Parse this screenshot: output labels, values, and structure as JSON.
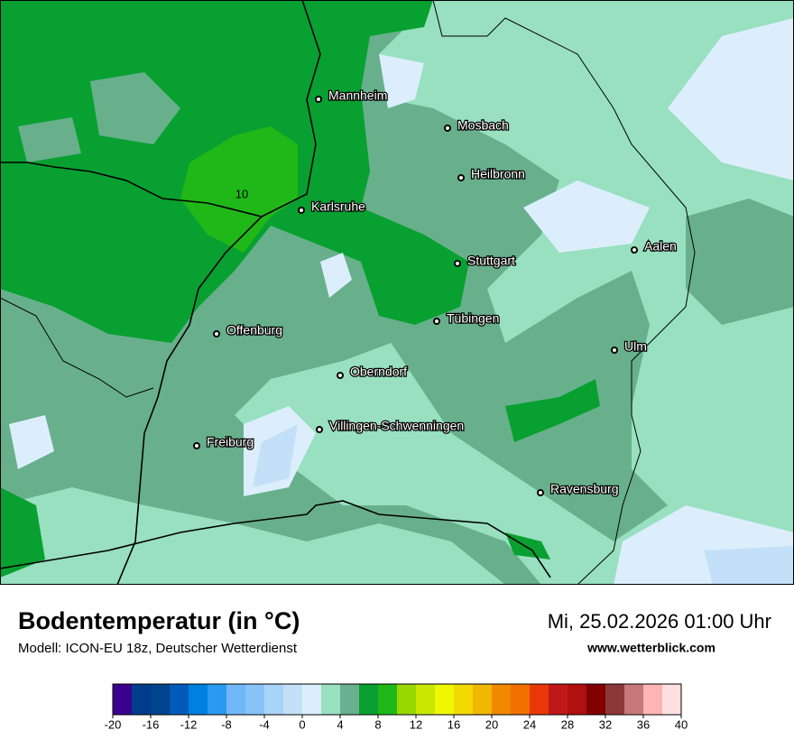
{
  "map": {
    "cities": [
      "Mannheim",
      "Mosbach",
      "Heilbronn",
      "Karlsruhe",
      "Aalen",
      "Stuttgart",
      "Tübingen",
      "Offenburg",
      "Ulm",
      "Oberndorf",
      "Villingen-Schwenningen",
      "Freiburg",
      "Ravensburg"
    ],
    "contour_label": "10"
  },
  "footer": {
    "title": "Bodentemperatur (in °C)",
    "model": "Modell: ICON-EU 18z, Deutscher Wetterdienst",
    "datetime": "Mi, 25.02.2026 01:00 Uhr",
    "website": "www.wetterblick.com"
  },
  "colorbar": {
    "ticks": [
      -20,
      -16,
      -12,
      -8,
      -4,
      0,
      4,
      8,
      12,
      16,
      20,
      24,
      28,
      32,
      36,
      40
    ],
    "colors": [
      "#3a0090",
      "#003c8c",
      "#00448c",
      "#005cb8",
      "#0080e0",
      "#2a9af0",
      "#70b8f8",
      "#88c4f8",
      "#a8d4f8",
      "#c4e0f8",
      "#dceefc",
      "#98e0c0",
      "#68b090",
      "#08a030",
      "#20b818",
      "#98d800",
      "#c8e800",
      "#f0f800",
      "#f0d800",
      "#f0b800",
      "#f08800",
      "#f07000",
      "#e83808",
      "#c01818",
      "#b01010",
      "#800000",
      "#8c3838",
      "#c87878",
      "#ffb4b4",
      "#ffe0e0"
    ]
  }
}
